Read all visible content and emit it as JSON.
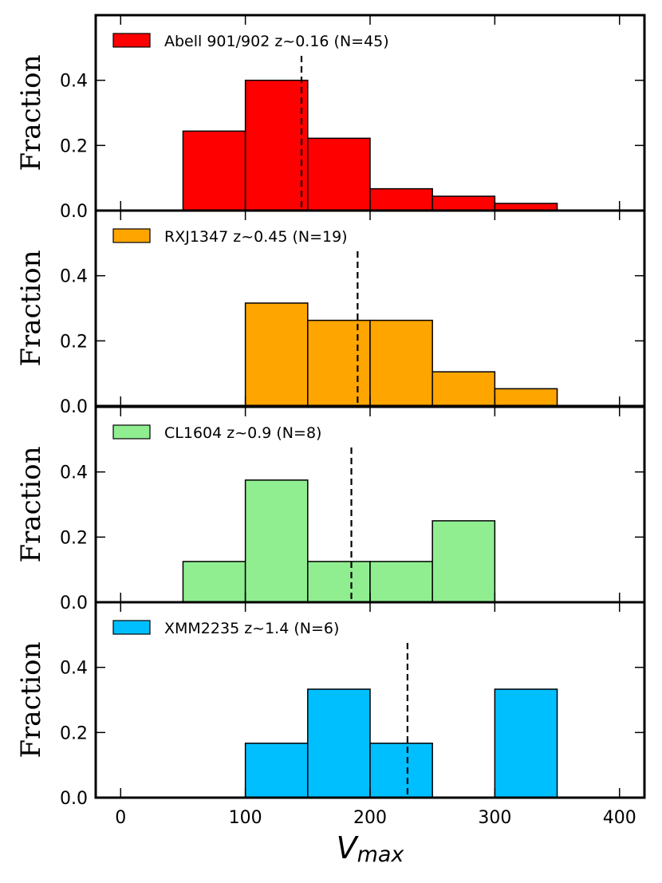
{
  "chart_data": {
    "type": "bar",
    "subtype": "stacked-panel-histogram",
    "xlabel": "V",
    "xlabel_subscript": "max",
    "xlim": [
      -20,
      420
    ],
    "xticks": [
      0,
      100,
      200,
      300,
      400
    ],
    "xtick_labels": [
      "0",
      "100",
      "200",
      "300",
      "400"
    ],
    "ylim": [
      0,
      0.6
    ],
    "yticks": [
      0.0,
      0.2,
      0.4
    ],
    "ytick_labels": [
      "0.0",
      "0.2",
      "0.4"
    ],
    "bin_edges": [
      50,
      100,
      150,
      200,
      250,
      300,
      350
    ],
    "panels": [
      {
        "name": "Abell 901/902",
        "legend": "Abell 901/902 z~0.16 (N=45)",
        "ylabel": "Fraction",
        "color": "#ff0000",
        "values": [
          0.244,
          0.4,
          0.222,
          0.067,
          0.044,
          0.022
        ],
        "median": 145
      },
      {
        "name": "RXJ1347",
        "legend": "RXJ1347 z~0.45 (N=19)",
        "ylabel": "Fraction",
        "color": "#ffa500",
        "values": [
          0.0,
          0.316,
          0.263,
          0.263,
          0.105,
          0.053
        ],
        "median": 190
      },
      {
        "name": "CL1604",
        "legend": "CL1604 z~0.9 (N=8)",
        "ylabel": "Fraction",
        "color": "#90ee90",
        "values": [
          0.125,
          0.375,
          0.125,
          0.125,
          0.25,
          0.0
        ],
        "median": 185
      },
      {
        "name": "XMM2235",
        "legend": "XMM2235 z~1.4 (N=6)",
        "ylabel": "Fraction",
        "color": "#00bfff",
        "values": [
          0.0,
          0.167,
          0.333,
          0.167,
          0.0,
          0.333
        ],
        "median": 230
      }
    ]
  }
}
